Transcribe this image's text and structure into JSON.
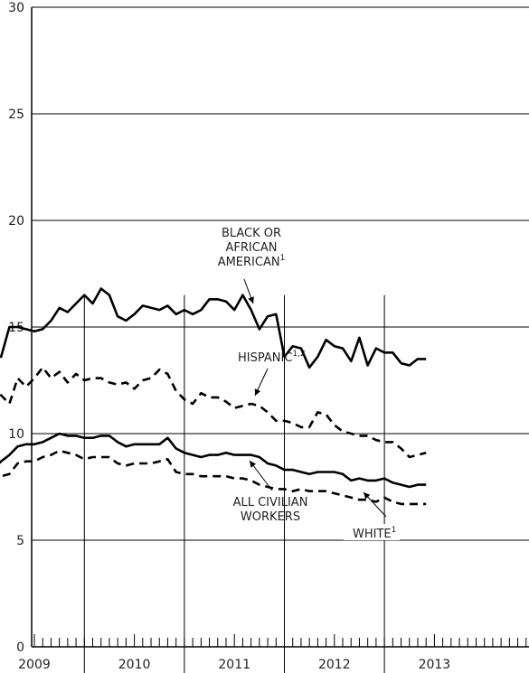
{
  "chart_data": {
    "type": "line",
    "ylim": [
      0,
      30
    ],
    "yticks": [
      0,
      5,
      10,
      15,
      20,
      25,
      30
    ],
    "xlim": [
      2009.0,
      2013.95
    ],
    "year_labels": [
      "2009",
      "2010",
      "2011",
      "2012",
      "2013"
    ],
    "grid": "horizontal",
    "series": [
      {
        "name": "BLACK OR AFRICAN AMERICAN",
        "style": "solid",
        "x": [
          2009.0,
          2009.083,
          2009.167,
          2009.25,
          2009.333,
          2009.417,
          2009.5,
          2009.583,
          2009.667,
          2009.75,
          2009.833,
          2009.917,
          2010.0,
          2010.083,
          2010.167,
          2010.25,
          2010.333,
          2010.417,
          2010.5,
          2010.583,
          2010.667,
          2010.75,
          2010.833,
          2010.917,
          2011.0,
          2011.083,
          2011.167,
          2011.25,
          2011.333,
          2011.417,
          2011.5,
          2011.583,
          2011.667,
          2011.75,
          2011.833,
          2011.917,
          2012.0,
          2012.083,
          2012.167,
          2012.25,
          2012.333,
          2012.417,
          2012.5,
          2012.583,
          2012.667,
          2012.75,
          2012.833,
          2012.917,
          2013.0,
          2013.083,
          2013.167,
          2013.25,
          2013.333,
          2013.417
        ],
        "y": [
          12.7,
          13.7,
          13.6,
          15.0,
          15.0,
          14.9,
          14.8,
          14.9,
          15.3,
          15.9,
          15.7,
          16.1,
          16.5,
          16.1,
          16.8,
          16.5,
          15.5,
          15.3,
          15.6,
          16.0,
          15.9,
          15.8,
          16.0,
          15.6,
          15.8,
          15.6,
          15.8,
          16.3,
          16.3,
          16.2,
          15.8,
          16.5,
          15.8,
          14.9,
          15.5,
          15.6,
          13.6,
          14.1,
          14.0,
          13.1,
          13.6,
          14.4,
          14.1,
          14.0,
          13.4,
          14.5,
          13.2,
          14.0,
          13.8,
          13.8,
          13.3,
          13.2,
          13.5,
          13.5
        ],
        "label": [
          "BLACK OR",
          "AFRICAN",
          "AMERICAN"
        ],
        "label_sup": "1"
      },
      {
        "name": "HISPANIC",
        "style": "dashed",
        "x": [
          2009.0,
          2009.083,
          2009.167,
          2009.25,
          2009.333,
          2009.417,
          2009.5,
          2009.583,
          2009.667,
          2009.75,
          2009.833,
          2009.917,
          2010.0,
          2010.083,
          2010.167,
          2010.25,
          2010.333,
          2010.417,
          2010.5,
          2010.583,
          2010.667,
          2010.75,
          2010.833,
          2010.917,
          2011.0,
          2011.083,
          2011.167,
          2011.25,
          2011.333,
          2011.417,
          2011.5,
          2011.583,
          2011.667,
          2011.75,
          2011.833,
          2011.917,
          2012.0,
          2012.083,
          2012.167,
          2012.25,
          2012.333,
          2012.417,
          2012.5,
          2012.583,
          2012.667,
          2012.75,
          2012.833,
          2012.917,
          2013.0,
          2013.083,
          2013.167,
          2013.25,
          2013.333,
          2013.417
        ],
        "y": [
          10.0,
          11.0,
          11.8,
          11.4,
          12.6,
          12.2,
          12.6,
          13.1,
          12.6,
          12.9,
          12.4,
          12.8,
          12.5,
          12.6,
          12.6,
          12.4,
          12.3,
          12.4,
          12.1,
          12.5,
          12.6,
          13.0,
          12.8,
          12.0,
          11.6,
          11.4,
          11.9,
          11.7,
          11.7,
          11.5,
          11.2,
          11.3,
          11.4,
          11.3,
          11.0,
          10.6,
          10.6,
          10.5,
          10.3,
          10.3,
          11.0,
          10.9,
          10.4,
          10.1,
          10.0,
          9.9,
          9.9,
          9.7,
          9.6,
          9.6,
          9.3,
          8.9,
          9.0,
          9.1
        ],
        "label": [
          "HISPANIC"
        ],
        "label_sup": "1,2"
      },
      {
        "name": "ALL CIVILIAN WORKERS",
        "style": "solid",
        "x": [
          2009.0,
          2009.083,
          2009.167,
          2009.25,
          2009.333,
          2009.417,
          2009.5,
          2009.583,
          2009.667,
          2009.75,
          2009.833,
          2009.917,
          2010.0,
          2010.083,
          2010.167,
          2010.25,
          2010.333,
          2010.417,
          2010.5,
          2010.583,
          2010.667,
          2010.75,
          2010.833,
          2010.917,
          2011.0,
          2011.083,
          2011.167,
          2011.25,
          2011.333,
          2011.417,
          2011.5,
          2011.583,
          2011.667,
          2011.75,
          2011.833,
          2011.917,
          2012.0,
          2012.083,
          2012.167,
          2012.25,
          2012.333,
          2012.417,
          2012.5,
          2012.583,
          2012.667,
          2012.75,
          2012.833,
          2012.917,
          2013.0,
          2013.083,
          2013.167,
          2013.25,
          2013.333,
          2013.417
        ],
        "y": [
          7.8,
          8.3,
          8.7,
          9.0,
          9.4,
          9.5,
          9.5,
          9.6,
          9.8,
          10.0,
          9.9,
          9.9,
          9.8,
          9.8,
          9.9,
          9.9,
          9.6,
          9.4,
          9.5,
          9.5,
          9.5,
          9.5,
          9.8,
          9.3,
          9.1,
          9.0,
          8.9,
          9.0,
          9.0,
          9.1,
          9.0,
          9.0,
          9.0,
          8.9,
          8.6,
          8.5,
          8.3,
          8.3,
          8.2,
          8.1,
          8.2,
          8.2,
          8.2,
          8.1,
          7.8,
          7.9,
          7.8,
          7.8,
          7.9,
          7.7,
          7.6,
          7.5,
          7.6,
          7.6
        ],
        "label": [
          "ALL CIVILIAN",
          "WORKERS"
        ]
      },
      {
        "name": "WHITE",
        "style": "dashed",
        "x": [
          2009.0,
          2009.083,
          2009.167,
          2009.25,
          2009.333,
          2009.417,
          2009.5,
          2009.583,
          2009.667,
          2009.75,
          2009.833,
          2009.917,
          2010.0,
          2010.083,
          2010.167,
          2010.25,
          2010.333,
          2010.417,
          2010.5,
          2010.583,
          2010.667,
          2010.75,
          2010.833,
          2010.917,
          2011.0,
          2011.083,
          2011.167,
          2011.25,
          2011.333,
          2011.417,
          2011.5,
          2011.583,
          2011.667,
          2011.75,
          2011.833,
          2011.917,
          2012.0,
          2012.083,
          2012.167,
          2012.25,
          2012.333,
          2012.417,
          2012.5,
          2012.583,
          2012.667,
          2012.75,
          2012.833,
          2012.917,
          2013.0,
          2013.083,
          2013.167,
          2013.25,
          2013.333,
          2013.417
        ],
        "y": [
          7.1,
          7.6,
          8.0,
          8.1,
          8.6,
          8.7,
          8.7,
          8.9,
          9.0,
          9.2,
          9.1,
          9.0,
          8.8,
          8.9,
          8.9,
          8.9,
          8.6,
          8.5,
          8.6,
          8.6,
          8.6,
          8.7,
          8.8,
          8.2,
          8.1,
          8.1,
          8.0,
          8.0,
          8.0,
          8.0,
          7.9,
          7.9,
          7.8,
          7.6,
          7.5,
          7.4,
          7.4,
          7.3,
          7.4,
          7.3,
          7.3,
          7.3,
          7.2,
          7.1,
          7.0,
          6.9,
          6.9,
          6.8,
          7.0,
          6.8,
          6.7,
          6.7,
          6.7,
          6.7
        ],
        "label": [
          "WHITE"
        ],
        "label_sup": "1"
      }
    ]
  }
}
